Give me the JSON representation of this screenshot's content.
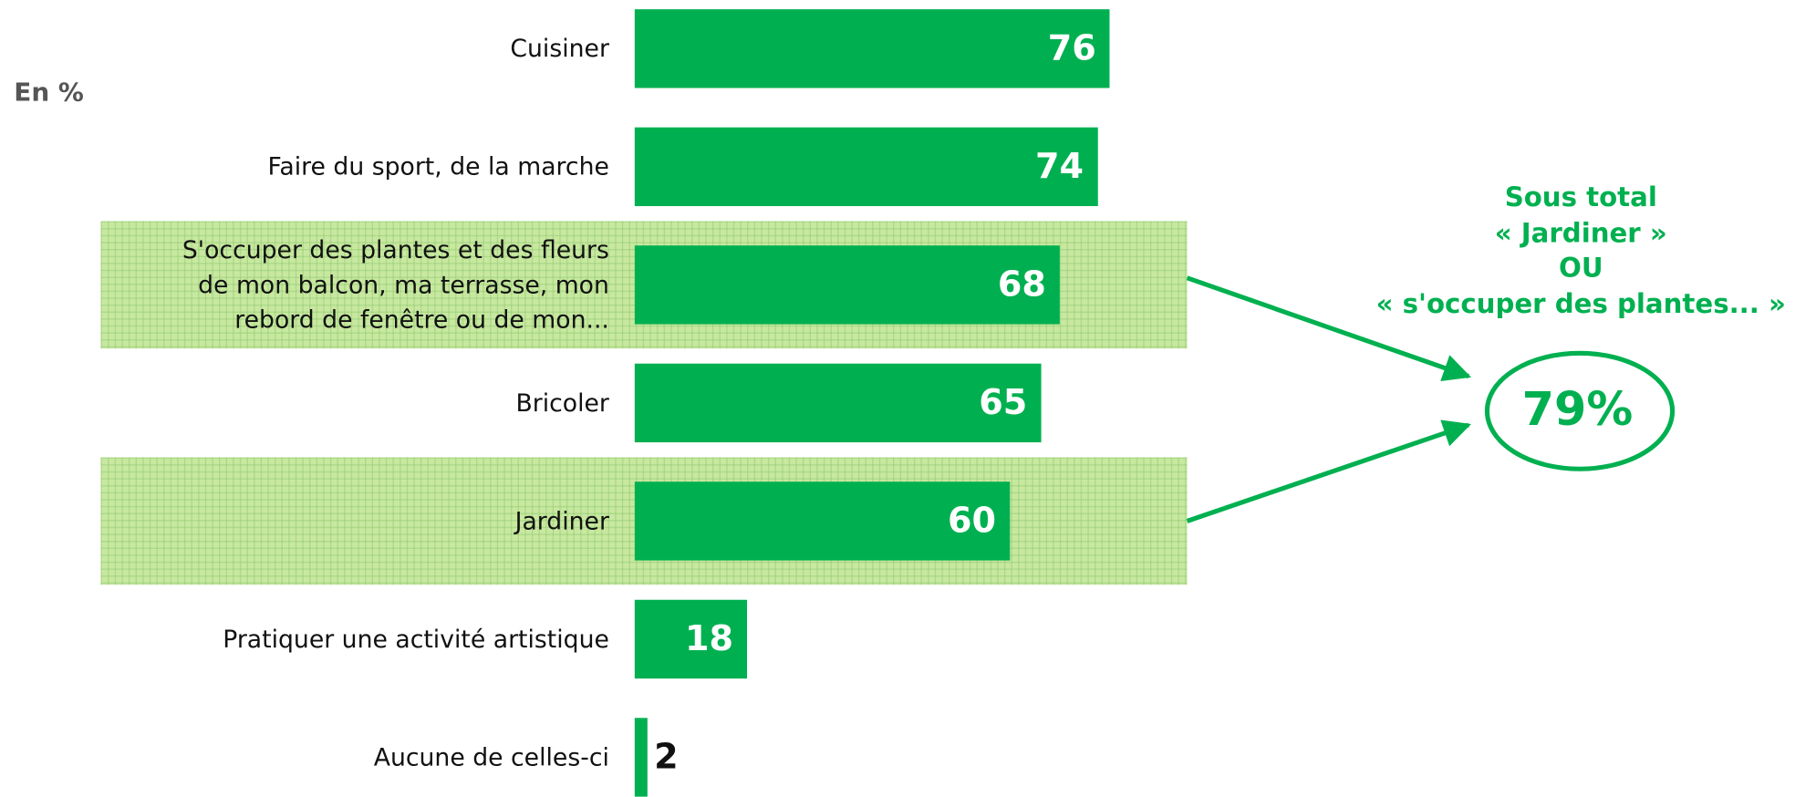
{
  "chart_data": {
    "type": "bar",
    "orientation": "horizontal",
    "unit_label": "En %",
    "categories": [
      "Cuisiner",
      "Faire du sport, de la marche",
      "S'occuper des plantes et des fleurs\nde mon balcon, ma terrasse, mon\nrebord de fenêtre ou de mon...",
      "Bricoler",
      "Jardiner",
      "Pratiquer une activité artistique",
      "Aucune de celles-ci"
    ],
    "values": [
      76,
      74,
      68,
      65,
      60,
      18,
      2
    ],
    "color": "#00b050",
    "highlight": [
      2,
      4
    ],
    "highlight_color": "#c8e8a0",
    "subtotal": {
      "title": [
        "Sous total",
        "« Jardiner »",
        "OU",
        "« s'occuper des plantes... »"
      ],
      "value": 79,
      "value_label": "79%"
    }
  }
}
